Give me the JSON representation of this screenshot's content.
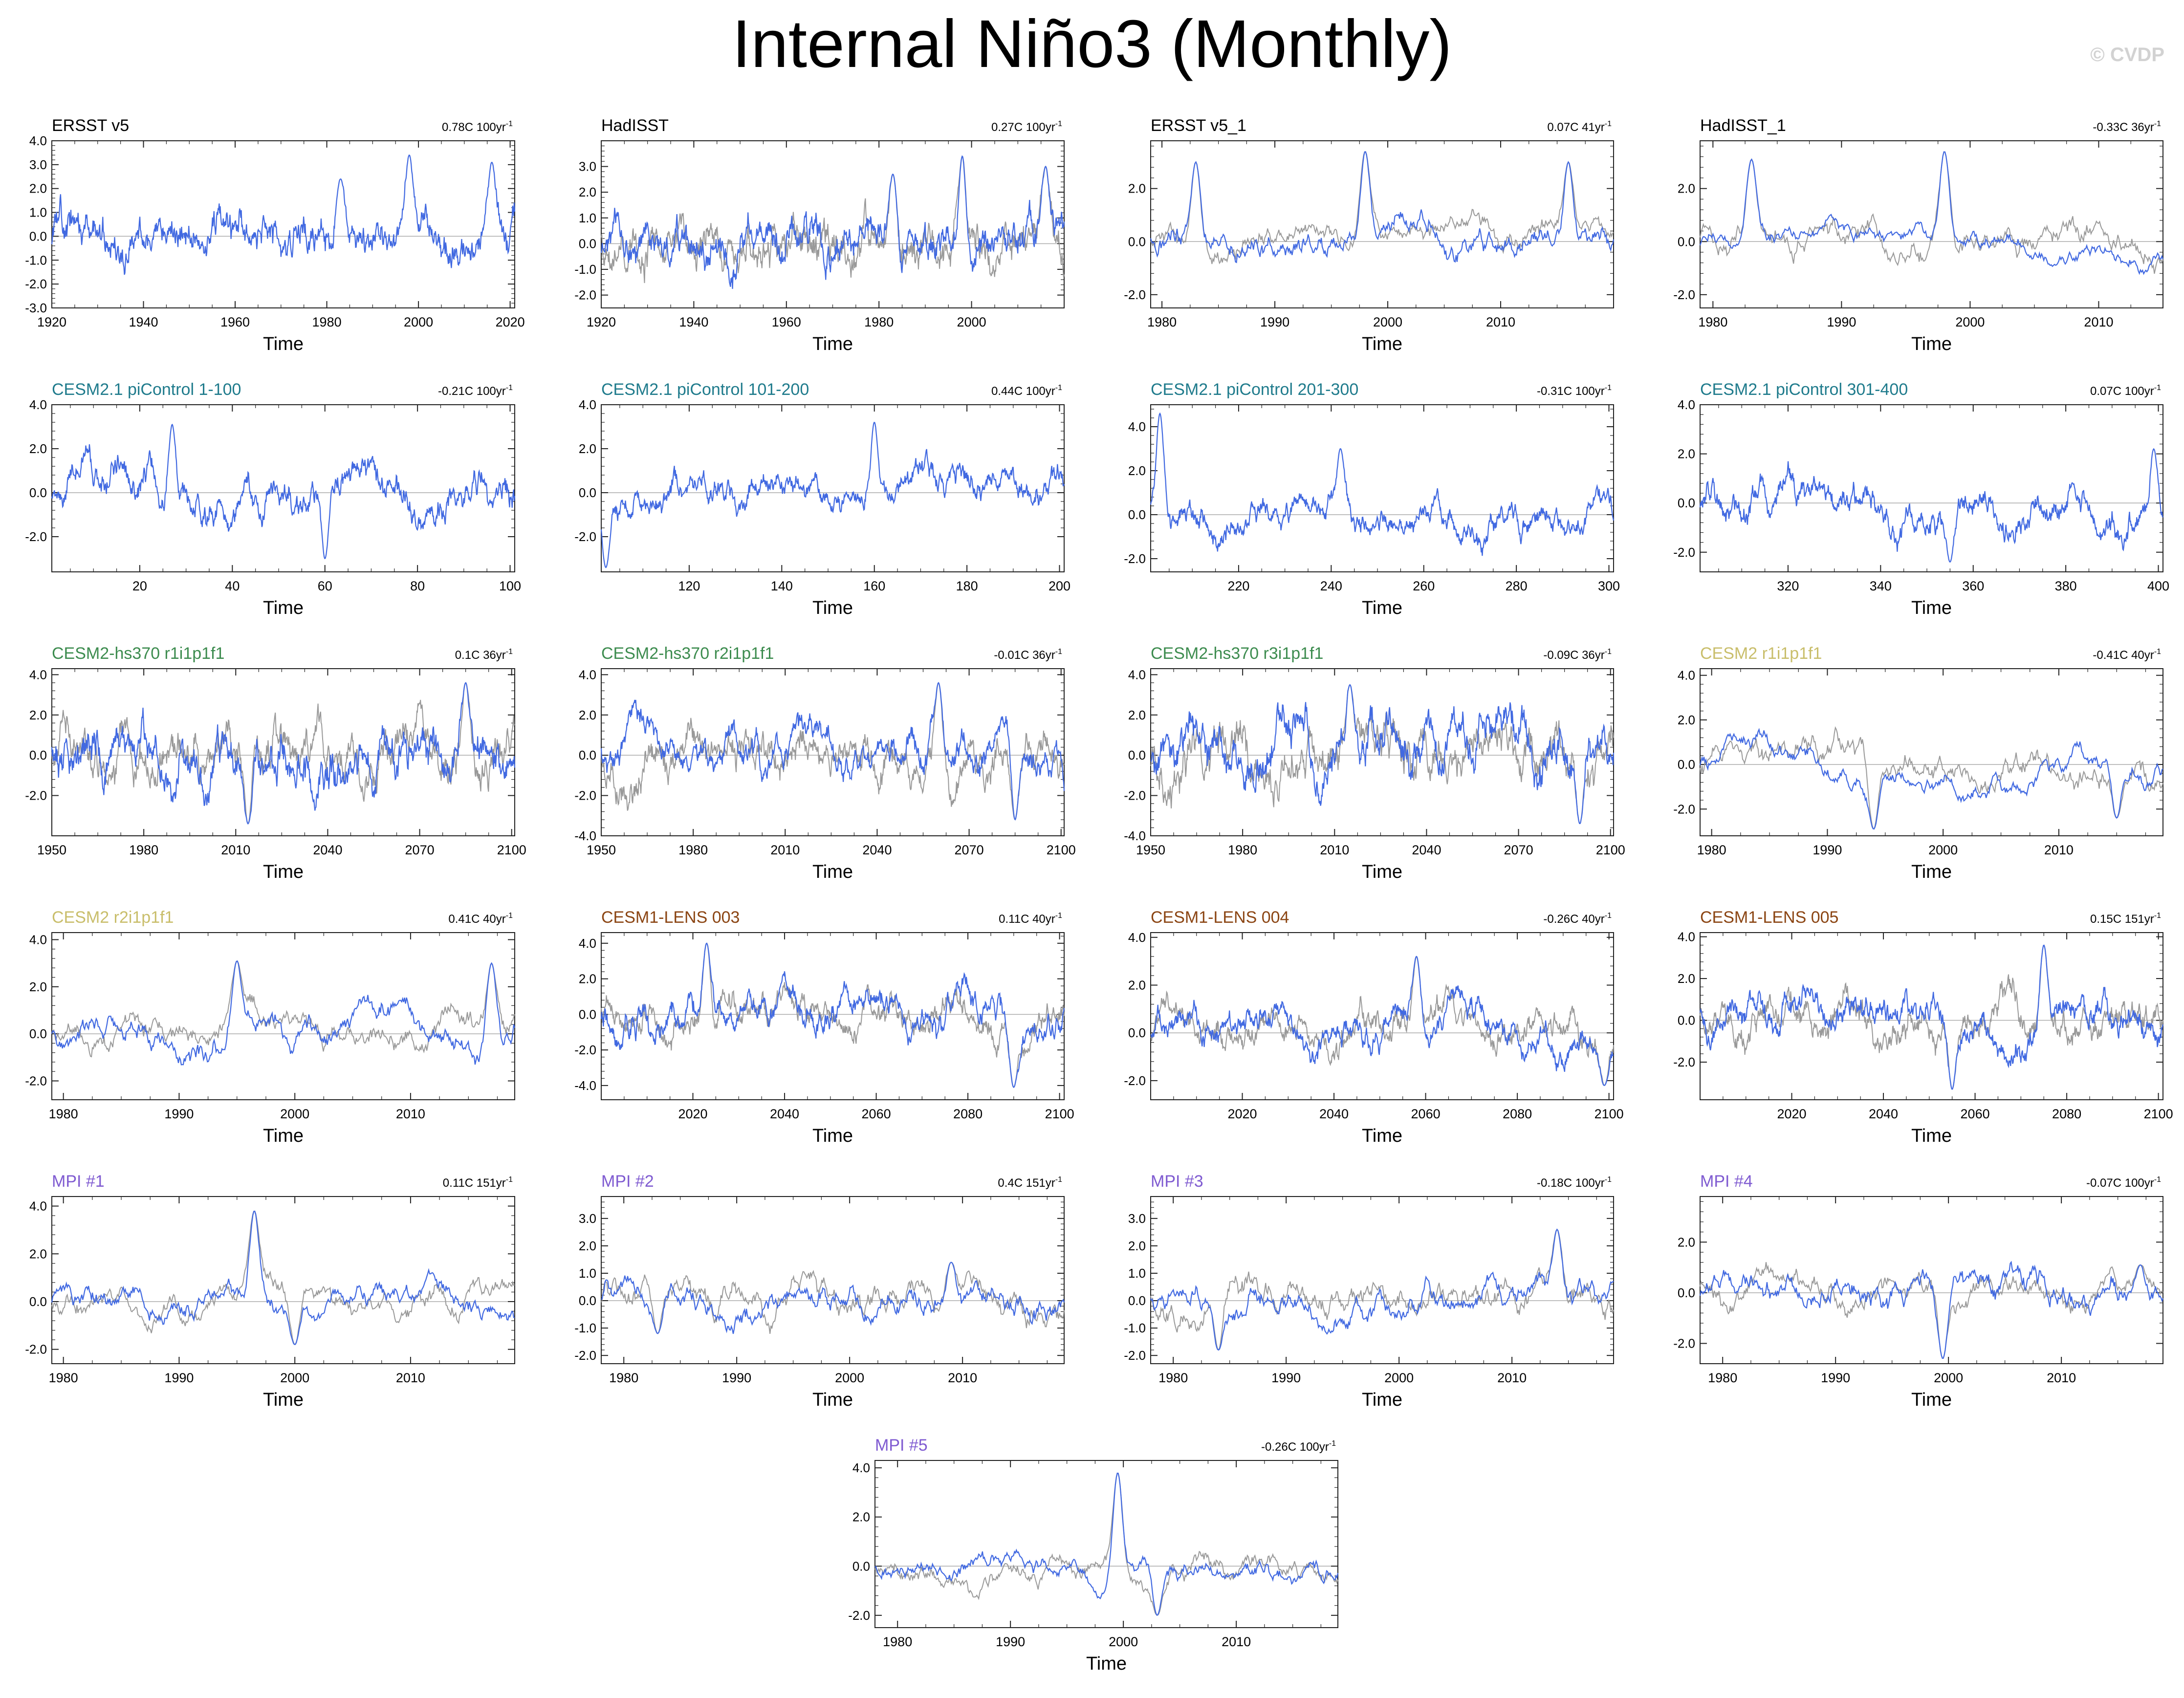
{
  "title": "Internal Niño3 (Monthly)",
  "credit": "© CVDP",
  "colors": {
    "primary": "#4169e1",
    "observed": "#999999",
    "zero": "#aaaaaa",
    "frame": "#222222"
  },
  "chart_data": [
    {
      "type": "line",
      "title": "ERSST v5",
      "title_color": "#000000",
      "trend": "0.78C 100yr",
      "xlabel": "Time",
      "x_start": 1920,
      "x_end": 2021,
      "xticks": [
        1920,
        1940,
        1960,
        1980,
        2000,
        2020
      ],
      "ylim": [
        -3,
        4
      ],
      "yticks": [
        -3,
        -2,
        -1,
        0,
        1,
        2,
        3,
        4
      ],
      "overlay": false,
      "seed": 11,
      "amp": 0.8,
      "period": 12,
      "peaks": [
        [
          1983,
          2.4
        ],
        [
          1998,
          3.4
        ],
        [
          2016,
          3.1
        ]
      ]
    },
    {
      "type": "line",
      "title": "HadISST",
      "title_color": "#000000",
      "trend": "0.27C 100yr",
      "xlabel": "Time",
      "x_start": 1920,
      "x_end": 2020,
      "xticks": [
        1920,
        1940,
        1960,
        1980,
        2000
      ],
      "ylim": [
        -2.5,
        4
      ],
      "yticks": [
        -2,
        -1,
        0,
        1,
        2,
        3
      ],
      "overlay": true,
      "seed": 23,
      "amp": 0.8,
      "period": 12,
      "peaks": [
        [
          1983,
          2.7
        ],
        [
          1998,
          3.4
        ],
        [
          2016,
          3.0
        ]
      ]
    },
    {
      "type": "line",
      "title": "ERSST v5_1",
      "title_color": "#000000",
      "trend": "0.07C 41yr",
      "xlabel": "Time",
      "x_start": 1979,
      "x_end": 2020,
      "xticks": [
        1980,
        1990,
        2000,
        2010
      ],
      "ylim": [
        -2.5,
        3.8
      ],
      "yticks": [
        -2,
        0,
        2
      ],
      "overlay": true,
      "seed": 31,
      "amp": 0.55,
      "period": 30,
      "peaks": [
        [
          1983,
          3.0
        ],
        [
          1998,
          3.4
        ],
        [
          2016,
          3.0
        ]
      ]
    },
    {
      "type": "line",
      "title": "HadISST_1",
      "title_color": "#000000",
      "trend": "-0.33C 36yr",
      "xlabel": "Time",
      "x_start": 1979,
      "x_end": 2015,
      "xticks": [
        1980,
        1990,
        2000,
        2010
      ],
      "ylim": [
        -2.5,
        3.8
      ],
      "yticks": [
        -2,
        0,
        2
      ],
      "overlay": true,
      "seed": 37,
      "amp": 0.55,
      "period": 30,
      "peaks": [
        [
          1983,
          3.1
        ],
        [
          1998,
          3.4
        ]
      ]
    },
    {
      "type": "line",
      "title": "CESM2.1 piControl 1-100",
      "title_color": "#1f7b8c",
      "trend": "-0.21C 100yr",
      "xlabel": "Time",
      "x_start": 1,
      "x_end": 101,
      "xticks": [
        20,
        40,
        60,
        80,
        100
      ],
      "ylim": [
        -3.6,
        4
      ],
      "yticks": [
        -2,
        0,
        2,
        4
      ],
      "overlay": false,
      "seed": 41,
      "amp": 1.0,
      "period": 28,
      "peaks": [
        [
          27,
          3.1
        ],
        [
          60,
          -3.0
        ]
      ]
    },
    {
      "type": "line",
      "title": "CESM2.1 piControl 101-200",
      "title_color": "#1f7b8c",
      "trend": "0.44C 100yr",
      "xlabel": "Time",
      "x_start": 101,
      "x_end": 201,
      "xticks": [
        120,
        140,
        160,
        180,
        200
      ],
      "ylim": [
        -3.6,
        4
      ],
      "yticks": [
        -2,
        0,
        2,
        4
      ],
      "overlay": false,
      "seed": 43,
      "amp": 0.9,
      "period": 28,
      "peaks": [
        [
          160,
          3.2
        ],
        [
          102,
          -3.4
        ]
      ]
    },
    {
      "type": "line",
      "title": "CESM2.1 piControl 201-300",
      "title_color": "#1f7b8c",
      "trend": "-0.31C 100yr",
      "xlabel": "Time",
      "x_start": 201,
      "x_end": 301,
      "xticks": [
        220,
        240,
        260,
        280,
        300
      ],
      "ylim": [
        -2.6,
        5
      ],
      "yticks": [
        -2,
        0,
        2,
        4
      ],
      "overlay": false,
      "seed": 47,
      "amp": 0.85,
      "period": 28,
      "peaks": [
        [
          203,
          4.6
        ],
        [
          242,
          3.0
        ]
      ]
    },
    {
      "type": "line",
      "title": "CESM2.1 piControl 301-400",
      "title_color": "#1f7b8c",
      "trend": "0.07C 100yr",
      "xlabel": "Time",
      "x_start": 301,
      "x_end": 401,
      "xticks": [
        320,
        340,
        360,
        380,
        400
      ],
      "ylim": [
        -2.8,
        4
      ],
      "yticks": [
        -2,
        0,
        2,
        4
      ],
      "overlay": false,
      "seed": 53,
      "amp": 0.9,
      "period": 28,
      "peaks": [
        [
          399,
          2.2
        ],
        [
          355,
          -2.4
        ]
      ]
    },
    {
      "type": "line",
      "title": "CESM2-hs370 r1i1p1f1",
      "title_color": "#3d8c4f",
      "trend": "0.1C 36yr",
      "xlabel": "Time",
      "x_start": 1950,
      "x_end": 2101,
      "xticks": [
        1950,
        1980,
        2010,
        2040,
        2070,
        2100
      ],
      "ylim": [
        -4,
        4.3
      ],
      "yticks": [
        -2,
        0,
        2,
        4
      ],
      "overlay": true,
      "seed": 59,
      "amp": 1.25,
      "period": 22,
      "peaks": [
        [
          2085,
          3.6
        ],
        [
          2014,
          -3.4
        ]
      ]
    },
    {
      "type": "line",
      "title": "CESM2-hs370 r2i1p1f1",
      "title_color": "#3d8c4f",
      "trend": "-0.01C 36yr",
      "xlabel": "Time",
      "x_start": 1950,
      "x_end": 2101,
      "xticks": [
        1950,
        1980,
        2010,
        2040,
        2070,
        2100
      ],
      "ylim": [
        -4,
        4.3
      ],
      "yticks": [
        -4,
        -2,
        0,
        2,
        4
      ],
      "overlay": true,
      "seed": 61,
      "amp": 1.25,
      "period": 22,
      "peaks": [
        [
          2060,
          3.6
        ],
        [
          2085,
          -3.2
        ]
      ]
    },
    {
      "type": "line",
      "title": "CESM2-hs370 r3i1p1f1",
      "title_color": "#3d8c4f",
      "trend": "-0.09C 36yr",
      "xlabel": "Time",
      "x_start": 1950,
      "x_end": 2101,
      "xticks": [
        1950,
        1980,
        2010,
        2040,
        2070,
        2100
      ],
      "ylim": [
        -4,
        4.3
      ],
      "yticks": [
        -4,
        -2,
        0,
        2,
        4
      ],
      "overlay": true,
      "seed": 67,
      "amp": 1.2,
      "period": 22,
      "peaks": [
        [
          2015,
          3.5
        ],
        [
          2090,
          -3.4
        ]
      ]
    },
    {
      "type": "line",
      "title": "CESM2 r1i1p1f1",
      "title_color": "#c9be6b",
      "trend": "-0.41C 40yr",
      "xlabel": "Time",
      "x_start": 1979,
      "x_end": 2019,
      "xticks": [
        1980,
        1990,
        2000,
        2010
      ],
      "ylim": [
        -3.2,
        4.3
      ],
      "yticks": [
        -2,
        0,
        2,
        4
      ],
      "overlay": true,
      "seed": 71,
      "amp": 0.75,
      "period": 40,
      "peaks": [
        [
          1994,
          -2.9
        ],
        [
          2015,
          -2.4
        ]
      ]
    },
    {
      "type": "line",
      "title": "CESM2 r2i1p1f1",
      "title_color": "#c9be6b",
      "trend": "0.41C 40yr",
      "xlabel": "Time",
      "x_start": 1979,
      "x_end": 2019,
      "xticks": [
        1980,
        1990,
        2000,
        2010
      ],
      "ylim": [
        -2.8,
        4.3
      ],
      "yticks": [
        -2,
        0,
        2,
        4
      ],
      "overlay": true,
      "seed": 73,
      "amp": 0.75,
      "period": 40,
      "peaks": [
        [
          1995,
          3.1
        ],
        [
          2017,
          3.0
        ]
      ]
    },
    {
      "type": "line",
      "title": "CESM1-LENS 003",
      "title_color": "#8b4513",
      "trend": "0.11C 40yr",
      "xlabel": "Time",
      "x_start": 2000,
      "x_end": 2101,
      "xticks": [
        2020,
        2040,
        2060,
        2080,
        2100
      ],
      "ylim": [
        -4.8,
        4.6
      ],
      "yticks": [
        -4,
        -2,
        0,
        2,
        4
      ],
      "overlay": true,
      "seed": 79,
      "amp": 1.1,
      "period": 26,
      "peaks": [
        [
          2023,
          4.0
        ],
        [
          2090,
          -4.1
        ]
      ]
    },
    {
      "type": "line",
      "title": "CESM1-LENS 004",
      "title_color": "#8b4513",
      "trend": "-0.26C 40yr",
      "xlabel": "Time",
      "x_start": 2000,
      "x_end": 2101,
      "xticks": [
        2020,
        2040,
        2060,
        2080,
        2100
      ],
      "ylim": [
        -2.8,
        4.2
      ],
      "yticks": [
        -2,
        0,
        2,
        4
      ],
      "overlay": true,
      "seed": 83,
      "amp": 0.9,
      "period": 26,
      "peaks": [
        [
          2058,
          3.2
        ],
        [
          2099,
          -2.2
        ]
      ]
    },
    {
      "type": "line",
      "title": "CESM1-LENS 005",
      "title_color": "#8b4513",
      "trend": "0.15C 151yr",
      "xlabel": "Time",
      "x_start": 2000,
      "x_end": 2101,
      "xticks": [
        2020,
        2040,
        2060,
        2080,
        2100
      ],
      "ylim": [
        -3.8,
        4.2
      ],
      "yticks": [
        -2,
        0,
        2,
        4
      ],
      "overlay": true,
      "seed": 89,
      "amp": 1.0,
      "period": 26,
      "peaks": [
        [
          2075,
          3.6
        ],
        [
          2055,
          -3.3
        ]
      ]
    },
    {
      "type": "line",
      "title": "MPI #1",
      "title_color": "#7f5bd1",
      "trend": "0.11C 151yr",
      "xlabel": "Time",
      "x_start": 1979,
      "x_end": 2019,
      "xticks": [
        1980,
        1990,
        2000,
        2010
      ],
      "ylim": [
        -2.6,
        4.4
      ],
      "yticks": [
        -2,
        0,
        2,
        4
      ],
      "overlay": true,
      "seed": 97,
      "amp": 0.6,
      "period": 30,
      "peaks": [
        [
          1996.5,
          3.8
        ],
        [
          2000,
          -1.8
        ]
      ]
    },
    {
      "type": "line",
      "title": "MPI #2",
      "title_color": "#7f5bd1",
      "trend": "0.4C 151yr",
      "xlabel": "Time",
      "x_start": 1978,
      "x_end": 2019,
      "xticks": [
        1980,
        1990,
        2000,
        2010
      ],
      "ylim": [
        -2.3,
        3.8
      ],
      "yticks": [
        -2,
        -1,
        0,
        1,
        2,
        3
      ],
      "overlay": true,
      "seed": 101,
      "amp": 0.55,
      "period": 30,
      "peaks": [
        [
          2009,
          1.4
        ],
        [
          1983,
          -1.2
        ]
      ]
    },
    {
      "type": "line",
      "title": "MPI #3",
      "title_color": "#7f5bd1",
      "trend": "-0.18C 100yr",
      "xlabel": "Time",
      "x_start": 1978,
      "x_end": 2019,
      "xticks": [
        1980,
        1990,
        2000,
        2010
      ],
      "ylim": [
        -2.3,
        3.8
      ],
      "yticks": [
        -2,
        -1,
        0,
        1,
        2,
        3
      ],
      "overlay": true,
      "seed": 103,
      "amp": 0.55,
      "period": 30,
      "peaks": [
        [
          2014,
          2.6
        ],
        [
          1984,
          -1.8
        ]
      ]
    },
    {
      "type": "line",
      "title": "MPI #4",
      "title_color": "#7f5bd1",
      "trend": "-0.07C 100yr",
      "xlabel": "Time",
      "x_start": 1978,
      "x_end": 2019,
      "xticks": [
        1980,
        1990,
        2000,
        2010
      ],
      "ylim": [
        -2.8,
        3.8
      ],
      "yticks": [
        -2,
        0,
        2
      ],
      "overlay": true,
      "seed": 107,
      "amp": 0.55,
      "period": 30,
      "peaks": [
        [
          1999.5,
          -2.6
        ],
        [
          2017,
          1.1
        ]
      ]
    },
    {
      "type": "line",
      "title": "MPI #5",
      "title_color": "#7f5bd1",
      "trend": "-0.26C 100yr",
      "xlabel": "Time",
      "x_start": 1978,
      "x_end": 2019,
      "xticks": [
        1980,
        1990,
        2000,
        2010
      ],
      "ylim": [
        -2.5,
        4.3
      ],
      "yticks": [
        -2,
        0,
        2,
        4
      ],
      "overlay": true,
      "seed": 109,
      "amp": 0.6,
      "period": 30,
      "peaks": [
        [
          1999.5,
          3.8
        ],
        [
          2003,
          -2.0
        ]
      ]
    }
  ]
}
